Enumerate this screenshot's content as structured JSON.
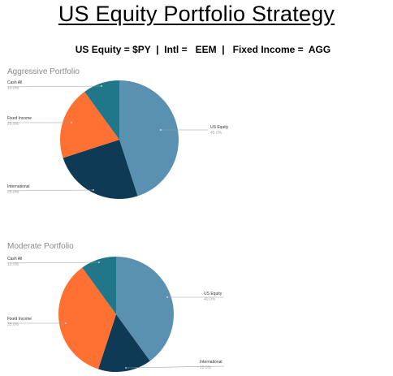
{
  "header": {
    "title": "US Equity Portfolio Strategy",
    "tickers": "US Equity = $PY  |  Intl =   EEM  |   Fixed Income =  AGG"
  },
  "colors": {
    "us_equity": "#5b91b0",
    "international": "#0e3a55",
    "fixed_income": "#ff7033",
    "cash_all": "#20778a"
  },
  "chart_data": [
    {
      "type": "pie",
      "title": "Aggressive Portfolio",
      "slices": [
        {
          "name": "US Equity",
          "value": 45.0,
          "label": "45.0%",
          "color": "#5b91b0"
        },
        {
          "name": "International",
          "value": 25.0,
          "label": "25.0%",
          "color": "#0e3a55"
        },
        {
          "name": "Fixed Income",
          "value": 20.0,
          "label": "20.0%",
          "color": "#ff7033"
        },
        {
          "name": "Cash All",
          "value": 10.0,
          "label": "10.0%",
          "color": "#20778a"
        }
      ]
    },
    {
      "type": "pie",
      "title": "Moderate Portfolio",
      "slices": [
        {
          "name": "US Equity",
          "value": 40.0,
          "label": "40.0%",
          "color": "#5b91b0"
        },
        {
          "name": "International",
          "value": 15.0,
          "label": "15.0%",
          "color": "#0e3a55"
        },
        {
          "name": "Fixed Income",
          "value": 35.0,
          "label": "35.0%",
          "color": "#ff7033"
        },
        {
          "name": "Cash All",
          "value": 10.0,
          "label": "10.0%",
          "color": "#20778a"
        }
      ]
    }
  ]
}
